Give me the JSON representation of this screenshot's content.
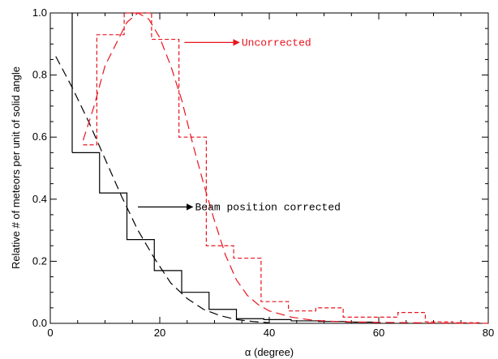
{
  "chart_data": {
    "type": "line",
    "title": "",
    "xlabel": "α (degree)",
    "ylabel": "Relative # of meteors per unit of solid angle",
    "xlim": [
      0,
      80
    ],
    "ylim": [
      0,
      1.0
    ],
    "x_ticks": [
      0,
      20,
      40,
      60,
      80
    ],
    "y_ticks": [
      0.0,
      0.2,
      0.4,
      0.6,
      0.8,
      1.0
    ],
    "x_tick_labels": [
      "0",
      "20",
      "40",
      "60",
      "80"
    ],
    "y_tick_labels": [
      "0.0",
      "0.2",
      "0.4",
      "0.6",
      "0.8",
      "1.0"
    ],
    "grid": false,
    "series": [
      {
        "key": "corrected_hist",
        "style": "step",
        "color": "#000000",
        "dash": "solid",
        "edges": [
          4,
          9,
          14,
          19,
          24,
          29,
          34,
          39,
          44,
          49,
          54,
          59
        ],
        "values": [
          0.55,
          0.42,
          0.27,
          0.17,
          0.1,
          0.045,
          0.015,
          0.012,
          0.008,
          0.006,
          0.004
        ]
      },
      {
        "key": "corrected_fit",
        "style": "line",
        "color": "#000000",
        "dash": "long",
        "x": [
          1,
          4,
          7,
          10,
          13,
          16,
          19,
          22,
          25,
          28,
          31,
          34,
          37,
          40
        ],
        "y": [
          0.86,
          0.76,
          0.65,
          0.53,
          0.41,
          0.3,
          0.21,
          0.13,
          0.08,
          0.045,
          0.025,
          0.012,
          0.006,
          0.002
        ]
      },
      {
        "key": "uncorrected_hist",
        "style": "step",
        "color": "#e8141e",
        "dash": "short",
        "edges": [
          6,
          8.5,
          13.5,
          18.5,
          23.5,
          28.5,
          33.5,
          38.5,
          43.5,
          48.5,
          53.5,
          58.5,
          63.5,
          68.5,
          73.5,
          78.5
        ],
        "values": [
          0.575,
          0.93,
          1.0,
          0.915,
          0.6,
          0.25,
          0.21,
          0.07,
          0.04,
          0.05,
          0.02,
          0.02,
          0.035,
          0.005,
          0.002
        ]
      },
      {
        "key": "uncorrected_fit",
        "style": "line",
        "color": "#e8141e",
        "dash": "long",
        "x": [
          6,
          8,
          10,
          12,
          14,
          16,
          18,
          20,
          22,
          24,
          26,
          28,
          30,
          32,
          34,
          36,
          38,
          40,
          44,
          48,
          52,
          56,
          60,
          66,
          72,
          80
        ],
        "y": [
          0.59,
          0.7,
          0.83,
          0.9,
          0.97,
          1.0,
          0.98,
          0.92,
          0.83,
          0.72,
          0.58,
          0.45,
          0.33,
          0.22,
          0.14,
          0.09,
          0.06,
          0.04,
          0.02,
          0.01,
          0.006,
          0.004,
          0.003,
          0.002,
          0.001,
          0.0
        ]
      }
    ],
    "annotations": [
      {
        "text": "Uncorrected",
        "color": "#e8141e",
        "arrow_from": [
          24.5,
          0.905
        ],
        "arrow_to": [
          34.5,
          0.905
        ]
      },
      {
        "text": "Beam position corrected",
        "color": "#000000",
        "arrow_from": [
          16,
          0.375
        ],
        "arrow_to": [
          26,
          0.375
        ]
      }
    ]
  }
}
